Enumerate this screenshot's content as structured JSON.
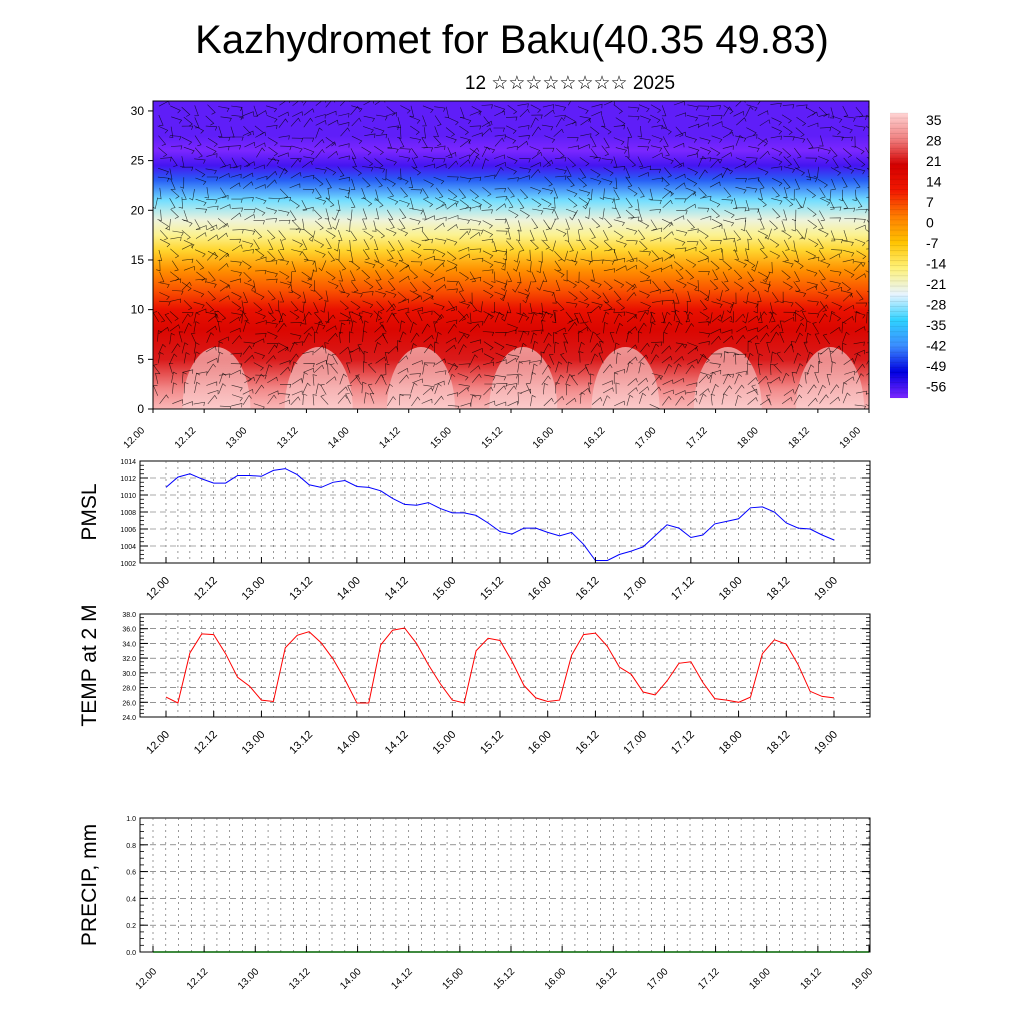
{
  "header": {
    "title": "Kazhydromet for Baku(40.35 49.83)",
    "subtitle": "12 ☆☆☆☆☆☆☆☆ 2025"
  },
  "time_ticks": [
    "12.00",
    "12.12",
    "13.00",
    "13.12",
    "14.00",
    "14.12",
    "15.00",
    "15.12",
    "16.00",
    "16.12",
    "17.00",
    "17.12",
    "18.00",
    "18.12",
    "19.00"
  ],
  "chart_data": [
    {
      "type": "heatmap",
      "title": "",
      "xlabel": "",
      "ylabel": "",
      "x_ticks": [
        "12.00",
        "12.12",
        "13.00",
        "13.12",
        "14.00",
        "14.12",
        "15.00",
        "15.12",
        "16.00",
        "16.12",
        "17.00",
        "17.12",
        "18.00",
        "18.12",
        "19.00"
      ],
      "y_ticks": [
        0,
        5,
        10,
        15,
        20,
        25,
        30
      ],
      "ylim": [
        0,
        31
      ],
      "colorbar_labels": [
        "35",
        "28",
        "21",
        "14",
        "7",
        "0",
        "-7",
        "-14",
        "-21",
        "-28",
        "-35",
        "-42",
        "-49",
        "-56"
      ],
      "colorbar_range": [
        -60,
        38
      ],
      "colorbar_stops": [
        "#7b27ff",
        "#0000e0",
        "#3b8cff",
        "#2fd2ff",
        "#e8f4ff",
        "#fff27a",
        "#ffc400",
        "#ff7e00",
        "#f21800",
        "#d40000",
        "#f08080",
        "#ffd5d5"
      ],
      "level_temperature_profile": {
        "levels": [
          0,
          2,
          5,
          8,
          10,
          12,
          14,
          16,
          17.5,
          19,
          21,
          23,
          24.5,
          26,
          27.5,
          31
        ],
        "values": [
          35,
          30,
          22,
          18,
          14,
          6,
          0,
          -10,
          -17,
          -22,
          -30,
          -45,
          -56,
          -60,
          -58,
          -58
        ]
      },
      "overlay": "wind barbs"
    },
    {
      "type": "line",
      "ylabel": "PMSL",
      "ylim": [
        1002,
        1014
      ],
      "y_ticks": [
        "1014",
        "1012",
        "1010",
        "1008",
        "1006",
        "1004",
        "1002"
      ],
      "x_ticks": [
        "12.00",
        "12.12",
        "13.00",
        "13.12",
        "14.00",
        "14.12",
        "15.00",
        "15.12",
        "16.00",
        "16.12",
        "17.00",
        "17.12",
        "18.00",
        "18.12",
        "19.00"
      ],
      "series": [
        {
          "color": "#0000ff",
          "values": [
            1010.9,
            1012.1,
            1012.5,
            1011.9,
            1011.4,
            1011.4,
            1012.3,
            1012.3,
            1012.2,
            1012.9,
            1013.1,
            1012.4,
            1011.2,
            1010.9,
            1011.5,
            1011.7,
            1011.0,
            1010.9,
            1010.5,
            1009.6,
            1008.9,
            1008.8,
            1009.1,
            1008.4,
            1007.9,
            1007.9,
            1007.6,
            1006.7,
            1005.7,
            1005.4,
            1006.1,
            1006.1,
            1005.6,
            1005.2,
            1005.6,
            1004.2,
            1002.3,
            1002.3,
            1003.0,
            1003.4,
            1003.9,
            1005.2,
            1006.5,
            1006.1,
            1005.0,
            1005.3,
            1006.6,
            1006.9,
            1007.2,
            1008.5,
            1008.6,
            1008.0,
            1006.7,
            1006.1,
            1006.0,
            1005.3,
            1004.7
          ]
        }
      ]
    },
    {
      "type": "line",
      "ylabel": "TEMP at 2 M",
      "ylim": [
        24,
        38
      ],
      "y_ticks": [
        "38.0",
        "36.0",
        "34.0",
        "32.0",
        "30.0",
        "28.0",
        "26.0",
        "24.0"
      ],
      "x_ticks": [
        "12.00",
        "12.12",
        "13.00",
        "13.12",
        "14.00",
        "14.12",
        "15.00",
        "15.12",
        "16.00",
        "16.12",
        "17.00",
        "17.12",
        "18.00",
        "18.12",
        "19.00"
      ],
      "series": [
        {
          "color": "#ff0000",
          "values": [
            26.7,
            25.9,
            32.7,
            35.3,
            35.2,
            32.6,
            29.4,
            28.2,
            26.3,
            26.1,
            33.4,
            35.1,
            35.6,
            34.1,
            31.9,
            29.1,
            25.9,
            25.9,
            33.8,
            35.8,
            36.1,
            34.0,
            31.1,
            28.5,
            26.3,
            25.9,
            33.0,
            34.7,
            34.4,
            31.6,
            28.3,
            26.6,
            26.1,
            26.3,
            32.4,
            35.2,
            35.4,
            33.6,
            30.8,
            29.8,
            27.4,
            27.0,
            28.9,
            31.3,
            31.5,
            28.7,
            26.5,
            26.3,
            26.0,
            26.7,
            32.6,
            34.5,
            33.9,
            31.1,
            27.5,
            26.8,
            26.6
          ]
        }
      ]
    },
    {
      "type": "line",
      "ylabel": "PRECIP, mm",
      "ylim": [
        0,
        1
      ],
      "y_ticks": [
        "1.0",
        "0.8",
        "0.6",
        "0.4",
        "0.2",
        "0.0"
      ],
      "x_ticks": [
        "12.00",
        "12.12",
        "13.00",
        "13.12",
        "14.00",
        "14.12",
        "15.00",
        "15.12",
        "16.00",
        "16.12",
        "17.00",
        "17.12",
        "18.00",
        "18.12",
        "19.00"
      ],
      "series": [
        {
          "color": "#006400",
          "values": [
            0,
            0,
            0,
            0,
            0,
            0,
            0,
            0,
            0,
            0,
            0,
            0,
            0,
            0,
            0,
            0,
            0,
            0,
            0,
            0,
            0,
            0,
            0,
            0,
            0,
            0,
            0,
            0,
            0,
            0,
            0,
            0,
            0,
            0,
            0,
            0,
            0,
            0,
            0,
            0,
            0,
            0,
            0,
            0,
            0,
            0,
            0,
            0,
            0,
            0,
            0,
            0,
            0,
            0,
            0,
            0,
            0
          ]
        }
      ]
    }
  ]
}
